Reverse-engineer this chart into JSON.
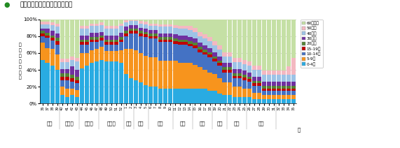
{
  "title": "・愛媛県　年齢別患者発生状況",
  "title_bullet": "●",
  "title_marker_color": "#228B22",
  "ylabel": "年\n齢\n別\n区\n分\n割\n合",
  "xlabel_months": [
    "９月",
    "１０月",
    "１１月",
    "１２月",
    "１月",
    "２月",
    "３月",
    "４月",
    "５月",
    "６月",
    "７月",
    "８月"
  ],
  "week_labels": [
    "36",
    "37",
    "38",
    "39",
    "40",
    "41",
    "42",
    "43",
    "44",
    "45",
    "46",
    "47",
    "48",
    "49",
    "50",
    "51",
    "52",
    "1",
    "2",
    "3",
    "4",
    "5",
    "6",
    "7",
    "8",
    "9",
    "10",
    "11",
    "12",
    "13",
    "14",
    "15",
    "16",
    "17",
    "18",
    "19",
    "20",
    "21",
    "22",
    "23",
    "24",
    "25",
    "26",
    "27",
    "28",
    "29",
    "30",
    "31",
    "32",
    "33",
    "34",
    "35"
  ],
  "week_end_label": "週",
  "age_groups": [
    "0-4歳",
    "5-9歳",
    "10-14歳",
    "15-19歳",
    "20歳代",
    "30歳代",
    "40歳代",
    "50歳代",
    "60歳以上"
  ],
  "colors": [
    "#29ABE2",
    "#F7941D",
    "#4472C4",
    "#C00000",
    "#548235",
    "#7030A0",
    "#9DC3E6",
    "#F4B8C1",
    "#C5E0A5"
  ],
  "data": [
    [
      52,
      20,
      8,
      3,
      3,
      3,
      5,
      3,
      3
    ],
    [
      48,
      18,
      12,
      3,
      3,
      5,
      5,
      3,
      3
    ],
    [
      45,
      20,
      10,
      3,
      3,
      5,
      7,
      3,
      4
    ],
    [
      40,
      18,
      12,
      4,
      4,
      5,
      8,
      4,
      5
    ],
    [
      10,
      10,
      8,
      4,
      4,
      5,
      8,
      4,
      47
    ],
    [
      8,
      10,
      10,
      4,
      4,
      5,
      8,
      4,
      47
    ],
    [
      10,
      8,
      8,
      4,
      4,
      10,
      8,
      4,
      44
    ],
    [
      8,
      8,
      8,
      4,
      4,
      8,
      10,
      4,
      46
    ],
    [
      42,
      18,
      10,
      3,
      3,
      5,
      8,
      3,
      8
    ],
    [
      45,
      15,
      10,
      3,
      3,
      5,
      8,
      3,
      8
    ],
    [
      48,
      15,
      10,
      3,
      3,
      5,
      8,
      3,
      5
    ],
    [
      50,
      15,
      8,
      3,
      3,
      5,
      8,
      3,
      5
    ],
    [
      52,
      15,
      8,
      3,
      3,
      4,
      8,
      3,
      4
    ],
    [
      50,
      12,
      8,
      3,
      3,
      5,
      8,
      3,
      8
    ],
    [
      50,
      12,
      8,
      3,
      3,
      5,
      8,
      3,
      8
    ],
    [
      50,
      12,
      8,
      3,
      3,
      5,
      8,
      3,
      8
    ],
    [
      48,
      15,
      10,
      3,
      3,
      5,
      8,
      3,
      5
    ],
    [
      35,
      30,
      15,
      3,
      3,
      5,
      5,
      3,
      1
    ],
    [
      30,
      35,
      18,
      3,
      3,
      4,
      5,
      1,
      1
    ],
    [
      28,
      35,
      20,
      3,
      3,
      4,
      5,
      1,
      1
    ],
    [
      25,
      35,
      20,
      3,
      3,
      4,
      5,
      3,
      2
    ],
    [
      22,
      35,
      22,
      3,
      3,
      4,
      5,
      3,
      3
    ],
    [
      20,
      35,
      22,
      3,
      3,
      4,
      5,
      3,
      5
    ],
    [
      20,
      35,
      22,
      3,
      3,
      4,
      5,
      3,
      5
    ],
    [
      18,
      33,
      22,
      3,
      3,
      4,
      8,
      3,
      6
    ],
    [
      18,
      33,
      22,
      3,
      3,
      4,
      8,
      3,
      6
    ],
    [
      18,
      33,
      22,
      3,
      3,
      4,
      8,
      3,
      6
    ],
    [
      18,
      33,
      20,
      3,
      3,
      5,
      8,
      3,
      7
    ],
    [
      18,
      30,
      22,
      3,
      3,
      5,
      8,
      3,
      8
    ],
    [
      18,
      30,
      22,
      3,
      3,
      5,
      8,
      3,
      8
    ],
    [
      18,
      30,
      20,
      3,
      3,
      5,
      8,
      5,
      8
    ],
    [
      18,
      28,
      20,
      3,
      3,
      5,
      8,
      5,
      10
    ],
    [
      18,
      25,
      18,
      3,
      3,
      5,
      8,
      5,
      15
    ],
    [
      18,
      22,
      18,
      3,
      3,
      5,
      8,
      5,
      18
    ],
    [
      15,
      22,
      18,
      3,
      3,
      5,
      8,
      5,
      21
    ],
    [
      15,
      20,
      15,
      3,
      3,
      5,
      8,
      5,
      26
    ],
    [
      12,
      18,
      15,
      3,
      3,
      5,
      8,
      5,
      31
    ],
    [
      10,
      15,
      12,
      3,
      3,
      5,
      8,
      5,
      39
    ],
    [
      10,
      15,
      12,
      3,
      3,
      5,
      8,
      5,
      39
    ],
    [
      8,
      12,
      10,
      3,
      3,
      5,
      8,
      5,
      46
    ],
    [
      8,
      12,
      10,
      3,
      3,
      5,
      8,
      5,
      46
    ],
    [
      8,
      10,
      10,
      3,
      3,
      5,
      8,
      5,
      48
    ],
    [
      8,
      10,
      8,
      3,
      3,
      5,
      8,
      5,
      50
    ],
    [
      5,
      8,
      8,
      3,
      3,
      5,
      8,
      5,
      55
    ],
    [
      5,
      8,
      8,
      3,
      3,
      5,
      8,
      5,
      55
    ],
    [
      5,
      5,
      5,
      3,
      3,
      5,
      8,
      5,
      61
    ],
    [
      5,
      5,
      5,
      3,
      3,
      5,
      8,
      5,
      61
    ],
    [
      5,
      5,
      5,
      3,
      3,
      5,
      8,
      5,
      61
    ],
    [
      5,
      5,
      5,
      3,
      3,
      5,
      8,
      5,
      61
    ],
    [
      5,
      5,
      5,
      3,
      3,
      5,
      8,
      5,
      61
    ],
    [
      5,
      5,
      5,
      3,
      3,
      5,
      8,
      10,
      56
    ],
    [
      5,
      5,
      5,
      3,
      3,
      5,
      8,
      20,
      46
    ]
  ],
  "ylim": [
    0,
    100
  ],
  "yticks": [
    0,
    20,
    40,
    60,
    80,
    100
  ],
  "ytick_labels": [
    "0%",
    "20%",
    "40%",
    "60%",
    "80%",
    "100%"
  ],
  "background_color": "#ffffff",
  "grid_color": "#c0c0c0",
  "month_boundaries_after_week_idx": [
    3,
    7,
    11,
    16,
    18,
    21,
    26,
    30,
    34,
    37,
    41,
    47
  ]
}
